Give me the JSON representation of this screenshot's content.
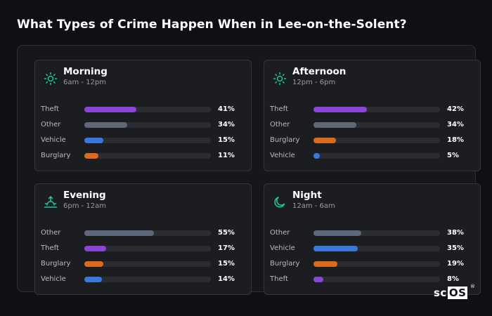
{
  "title": "What Types of Crime Happen When in Lee-on-the-Solent?",
  "logo": {
    "text_plain": "sc",
    "text_boxed": "OS",
    "mark": "®"
  },
  "colors": {
    "Theft": "#8b45d6",
    "Other": "#5f6878",
    "Vehicle": "#3b78dc",
    "Burglary": "#db6a1f",
    "icon_accent": "#1fc7a0"
  },
  "chart_data": [
    {
      "type": "bar",
      "title": "Morning",
      "subtitle": "6am - 12pm",
      "icon": "sun-icon",
      "categories": [
        "Theft",
        "Other",
        "Vehicle",
        "Burglary"
      ],
      "values": [
        41,
        34,
        15,
        11
      ],
      "value_labels": [
        "41%",
        "34%",
        "15%",
        "11%"
      ],
      "xlim": [
        0,
        100
      ]
    },
    {
      "type": "bar",
      "title": "Afternoon",
      "subtitle": "12pm - 6pm",
      "icon": "sun-icon",
      "categories": [
        "Theft",
        "Other",
        "Burglary",
        "Vehicle"
      ],
      "values": [
        42,
        34,
        18,
        5
      ],
      "value_labels": [
        "42%",
        "34%",
        "18%",
        "5%"
      ],
      "xlim": [
        0,
        100
      ]
    },
    {
      "type": "bar",
      "title": "Evening",
      "subtitle": "6pm - 12am",
      "icon": "sunset-icon",
      "categories": [
        "Other",
        "Theft",
        "Burglary",
        "Vehicle"
      ],
      "values": [
        55,
        17,
        15,
        14
      ],
      "value_labels": [
        "55%",
        "17%",
        "15%",
        "14%"
      ],
      "xlim": [
        0,
        100
      ]
    },
    {
      "type": "bar",
      "title": "Night",
      "subtitle": "12am - 6am",
      "icon": "moon-icon",
      "categories": [
        "Other",
        "Vehicle",
        "Burglary",
        "Theft"
      ],
      "values": [
        38,
        35,
        19,
        8
      ],
      "value_labels": [
        "38%",
        "35%",
        "19%",
        "8%"
      ],
      "xlim": [
        0,
        100
      ]
    }
  ]
}
